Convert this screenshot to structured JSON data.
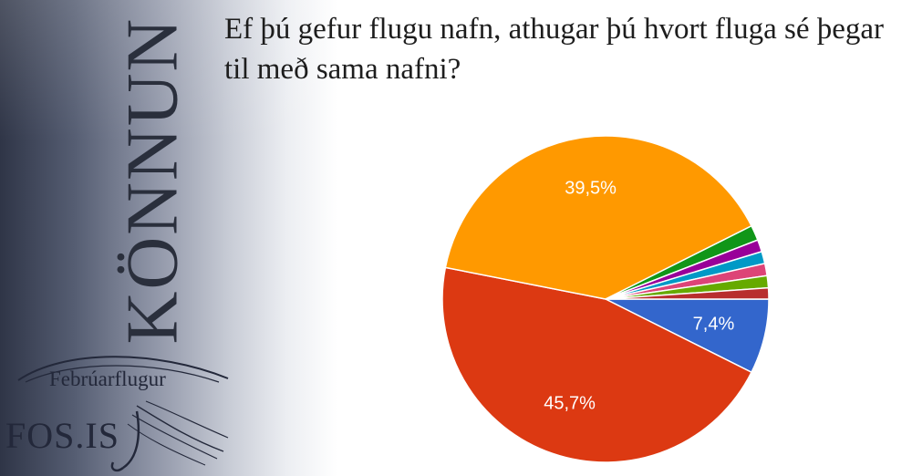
{
  "sidebar": {
    "title": "KÖNNUN"
  },
  "logo": {
    "top_text": "Febrúarflugur",
    "bottom_text": "FOS.IS"
  },
  "chart_data": {
    "type": "pie",
    "title": "Ef þú gefur flugu nafn, athugar þú hvort fluga sé þegar til með sama nafni?",
    "legend": "none",
    "slices": [
      {
        "value": 7.4,
        "color": "#3366cc",
        "label": "7,4%"
      },
      {
        "value": 45.7,
        "color": "#dc3912",
        "label": "45,7%"
      },
      {
        "value": 39.5,
        "color": "#ff9900",
        "label": "39,5%"
      },
      {
        "value": 1.5,
        "color": "#109618",
        "label": ""
      },
      {
        "value": 1.2,
        "color": "#990099",
        "label": ""
      },
      {
        "value": 1.2,
        "color": "#0099c6",
        "label": ""
      },
      {
        "value": 1.2,
        "color": "#dd4477",
        "label": ""
      },
      {
        "value": 1.2,
        "color": "#66aa00",
        "label": ""
      },
      {
        "value": 1.1,
        "color": "#b82e2e",
        "label": ""
      }
    ]
  }
}
